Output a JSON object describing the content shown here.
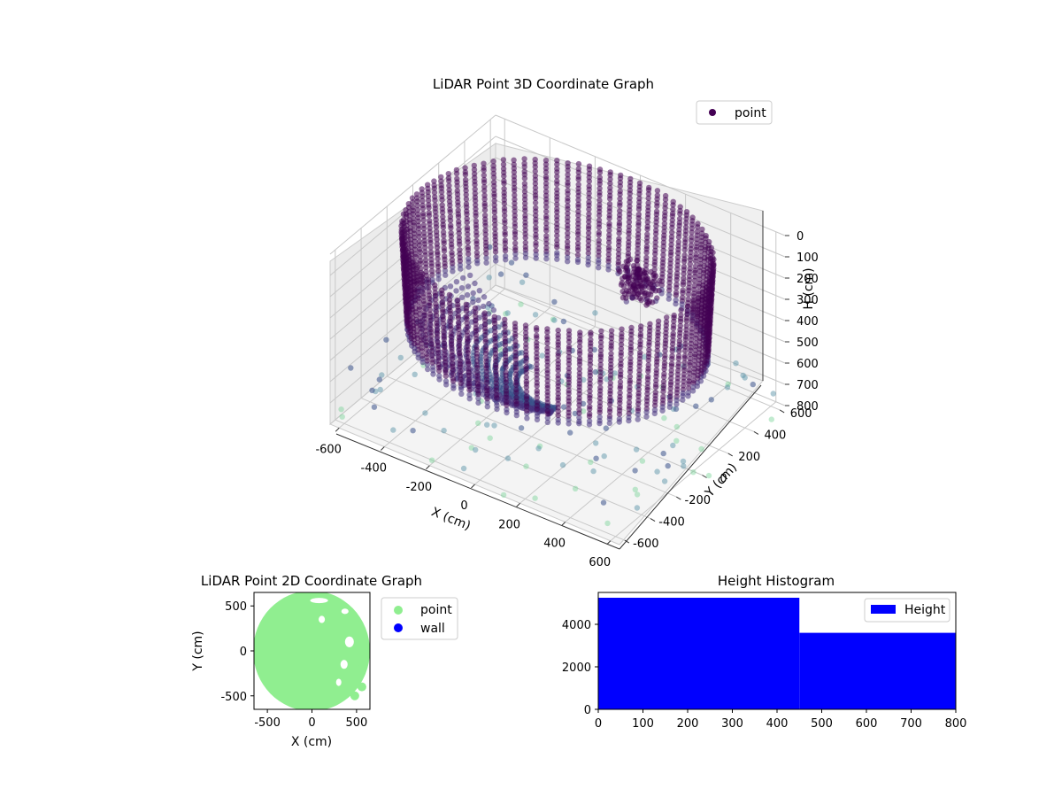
{
  "chart_data": [
    {
      "type": "scatter",
      "title": "LiDAR Point 3D Coordinate Graph",
      "xlabel": "X (cm)",
      "ylabel": "Y (cm)",
      "zlabel": "H (cm)",
      "x_ticks": [
        "-600",
        "-400",
        "-200",
        "0",
        "200",
        "400",
        "600"
      ],
      "y_ticks": [
        "-600",
        "-400",
        "-200",
        "0",
        "200",
        "400",
        "600"
      ],
      "z_ticks": [
        "0",
        "100",
        "200",
        "300",
        "400",
        "500",
        "600",
        "700",
        "800"
      ],
      "xlim": [
        -640,
        640
      ],
      "ylim": [
        -640,
        640
      ],
      "zlim": [
        0,
        800
      ],
      "z_inverted": true,
      "grid": true,
      "legend": {
        "position": "top-right",
        "entries": [
          "point"
        ]
      },
      "colormap": "viridis",
      "series": [
        {
          "name": "point",
          "description_values": {
            "ring_radius_cm": 600,
            "ring_heights_cm": [
              0,
              450
            ],
            "blob_center": {
              "x": 120,
              "y": 420,
              "h": 350
            }
          }
        }
      ]
    },
    {
      "type": "scatter",
      "title": "LiDAR Point 2D Coordinate Graph",
      "xlabel": "X (cm)",
      "ylabel": "Y (cm)",
      "x_ticks": [
        "-500",
        "0",
        "500"
      ],
      "y_ticks": [
        "500",
        "0",
        "-500"
      ],
      "xlim": [
        -650,
        650
      ],
      "ylim": [
        -650,
        650
      ],
      "legend": {
        "position": "right",
        "entries": [
          "point",
          "wall"
        ]
      },
      "series": [
        {
          "name": "point",
          "color": "#90ee90"
        },
        {
          "name": "wall",
          "color": "#0000ff"
        }
      ]
    },
    {
      "type": "bar",
      "title": "Height Histogram",
      "x_ticks": [
        "0",
        "100",
        "200",
        "300",
        "400",
        "500",
        "600",
        "700",
        "800"
      ],
      "y_ticks": [
        "0",
        "2000",
        "4000"
      ],
      "xlim": [
        0,
        800
      ],
      "ylim": [
        0,
        5500
      ],
      "legend": {
        "position": "top-right",
        "entries": [
          "Height"
        ]
      },
      "series": [
        {
          "name": "Height",
          "color": "#0000ff",
          "bins": [
            {
              "from": 0,
              "to": 450,
              "count": 5250
            },
            {
              "from": 450,
              "to": 800,
              "count": 3600
            }
          ]
        }
      ]
    }
  ],
  "colors": {
    "point_dark": "#440154",
    "point_mid": "#3b528b",
    "point_teal": "#21918c",
    "point_light": "#5ec962",
    "green": "#90ee90",
    "blue": "#0000ff"
  }
}
